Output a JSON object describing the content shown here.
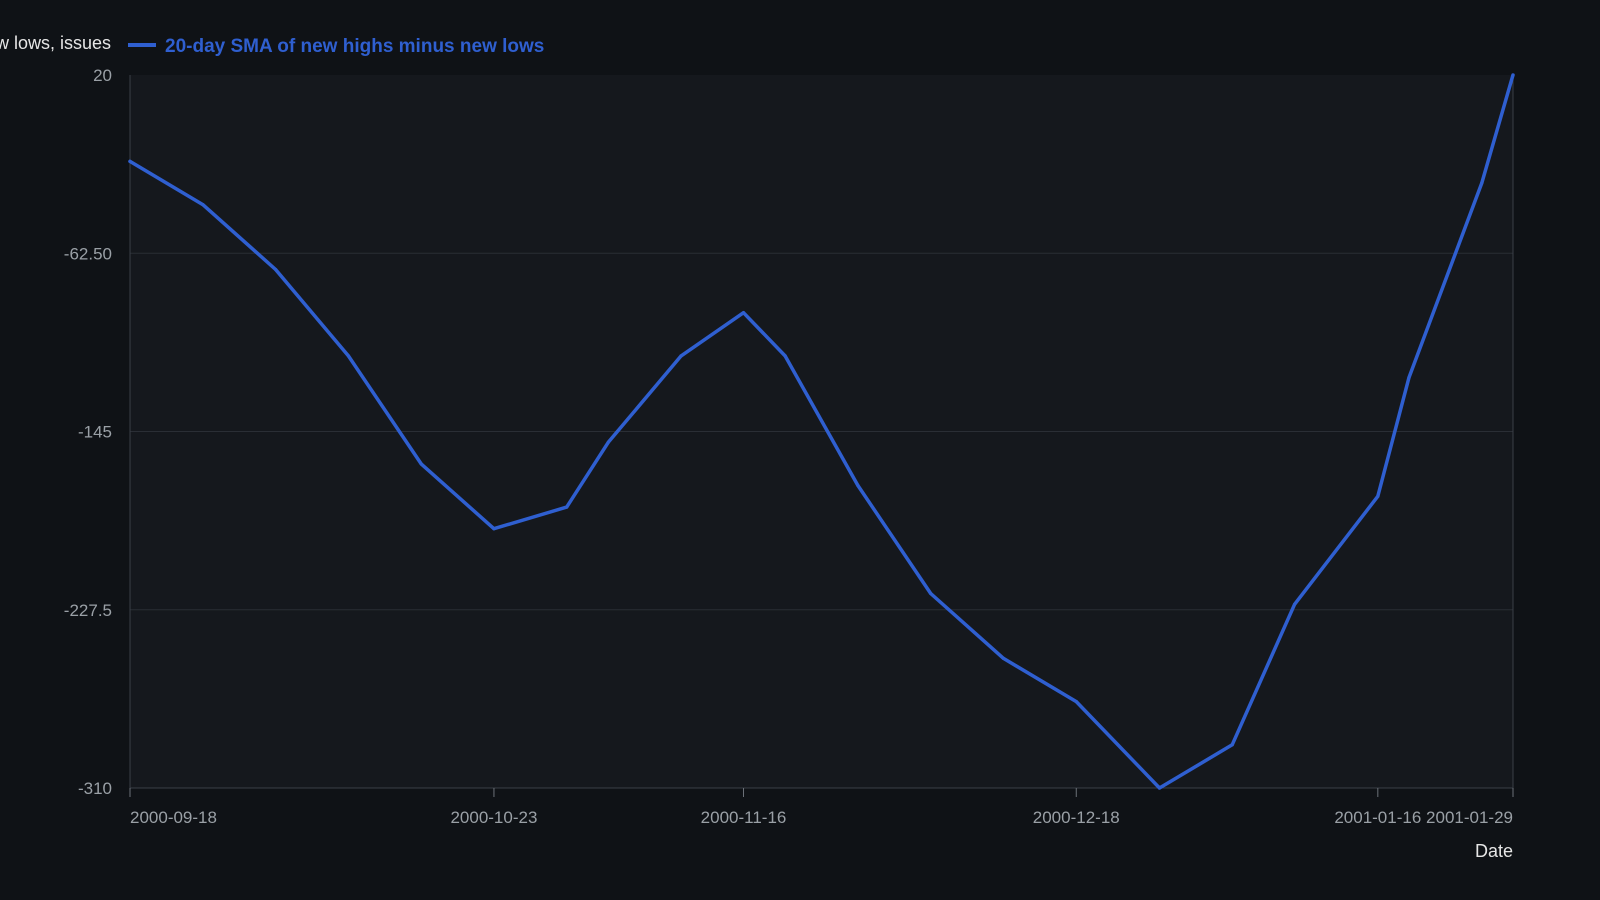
{
  "chart_data": {
    "type": "line",
    "title": "",
    "xlabel": "Date",
    "ylabel": "New highs minus new lows, issues",
    "ylim": [
      -310,
      20
    ],
    "yticks": [
      "20",
      "-62.50",
      "-145",
      "-227.5",
      "-310"
    ],
    "ytick_values": [
      20,
      -62.5,
      -145,
      -227.5,
      -310
    ],
    "xlim": [
      "2000-09-18",
      "2001-01-29"
    ],
    "xticks": [
      "2000-09-18",
      "2000-10-23",
      "2000-11-16",
      "2000-12-18",
      "2001-01-16",
      "2001-01-29"
    ],
    "grid": true,
    "legend": "top-left",
    "series": [
      {
        "name": "20-day SMA of new highs minus new lows",
        "color": "#2f5fd0",
        "x": [
          "2000-09-18",
          "2000-09-25",
          "2000-10-02",
          "2000-10-09",
          "2000-10-16",
          "2000-10-23",
          "2000-10-30",
          "2000-11-03",
          "2000-11-10",
          "2000-11-16",
          "2000-11-20",
          "2000-11-27",
          "2000-12-04",
          "2000-12-11",
          "2000-12-18",
          "2000-12-26",
          "2001-01-02",
          "2001-01-08",
          "2001-01-16",
          "2001-01-19",
          "2001-01-26",
          "2001-01-29"
        ],
        "values": [
          -20,
          -40,
          -70,
          -110,
          -160,
          -190,
          -180,
          -150,
          -110,
          -90,
          -110,
          -170,
          -220,
          -250,
          -270,
          -310,
          -290,
          -225,
          -175,
          -120,
          -30,
          20
        ]
      }
    ]
  }
}
